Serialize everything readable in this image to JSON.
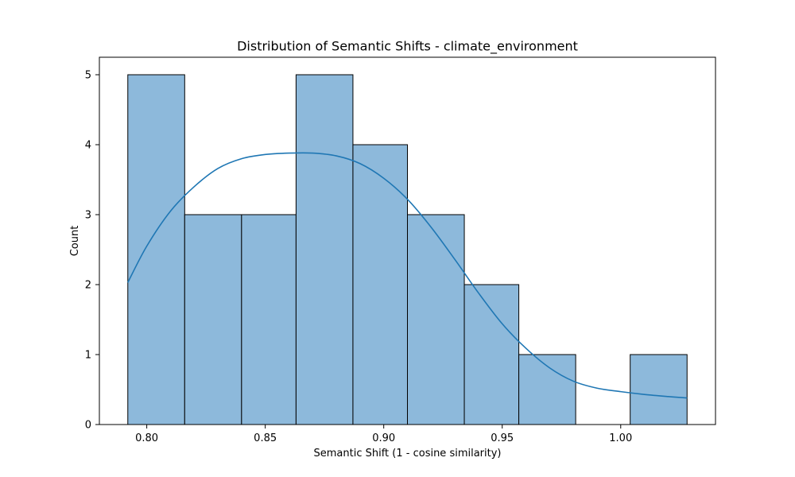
{
  "chart_data": {
    "type": "bar",
    "title": "Distribution of Semantic Shifts - climate_environment",
    "xlabel": "Semantic Shift (1 - cosine similarity)",
    "ylabel": "Count",
    "xlim": [
      0.78,
      1.04
    ],
    "ylim": [
      0,
      5.25
    ],
    "bins": [
      {
        "x0": 0.792,
        "x1": 0.816,
        "count": 5
      },
      {
        "x0": 0.816,
        "x1": 0.84,
        "count": 3
      },
      {
        "x0": 0.84,
        "x1": 0.863,
        "count": 3
      },
      {
        "x0": 0.863,
        "x1": 0.887,
        "count": 5
      },
      {
        "x0": 0.887,
        "x1": 0.91,
        "count": 4
      },
      {
        "x0": 0.91,
        "x1": 0.934,
        "count": 3
      },
      {
        "x0": 0.934,
        "x1": 0.957,
        "count": 2
      },
      {
        "x0": 0.957,
        "x1": 0.981,
        "count": 1
      },
      {
        "x0": 0.981,
        "x1": 1.004,
        "count": 0
      },
      {
        "x0": 1.004,
        "x1": 1.028,
        "count": 1
      }
    ],
    "kde": {
      "x": [
        0.792,
        0.8,
        0.81,
        0.82,
        0.83,
        0.84,
        0.85,
        0.86,
        0.87,
        0.88,
        0.89,
        0.9,
        0.91,
        0.92,
        0.93,
        0.94,
        0.95,
        0.96,
        0.97,
        0.98,
        0.99,
        1.0,
        1.01,
        1.02,
        1.028
      ],
      "y": [
        2.03,
        2.55,
        3.05,
        3.4,
        3.66,
        3.8,
        3.86,
        3.88,
        3.88,
        3.84,
        3.73,
        3.52,
        3.22,
        2.82,
        2.36,
        1.88,
        1.44,
        1.09,
        0.81,
        0.62,
        0.52,
        0.47,
        0.43,
        0.4,
        0.38
      ]
    },
    "xticks": [
      {
        "value": 0.8,
        "label": "0.80"
      },
      {
        "value": 0.85,
        "label": "0.85"
      },
      {
        "value": 0.9,
        "label": "0.90"
      },
      {
        "value": 0.95,
        "label": "0.95"
      },
      {
        "value": 1.0,
        "label": "1.00"
      }
    ],
    "yticks": [
      {
        "value": 0,
        "label": "0"
      },
      {
        "value": 1,
        "label": "1"
      },
      {
        "value": 2,
        "label": "2"
      },
      {
        "value": 3,
        "label": "3"
      },
      {
        "value": 4,
        "label": "4"
      },
      {
        "value": 5,
        "label": "5"
      }
    ],
    "grid": false,
    "colors": {
      "bar_fill": "#8db9db",
      "bar_edge": "#000000",
      "kde_line": "#1f77b4"
    }
  }
}
